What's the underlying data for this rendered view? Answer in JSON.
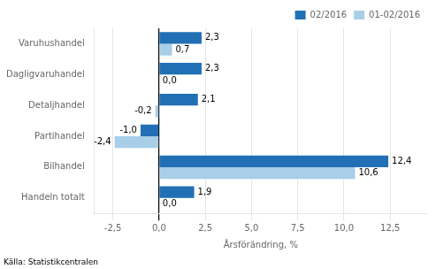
{
  "chart_data": {
    "type": "bar",
    "orientation": "horizontal",
    "categories": [
      "Varuhushandel",
      "Dagligvaruhandel",
      "Detaljhandel",
      "Partihandel",
      "Bilhandel",
      "Handeln totalt"
    ],
    "series": [
      {
        "name": "02/2016",
        "color": "#2170B5",
        "values": [
          2.3,
          2.3,
          2.1,
          -1.0,
          12.4,
          1.9
        ],
        "value_labels": [
          "2,3",
          "2,3",
          "2,1",
          "-1,0",
          "12,4",
          "1,9"
        ]
      },
      {
        "name": "01-02/2016",
        "color": "#A8CEE8",
        "values": [
          0.7,
          0.0,
          -0.2,
          -2.4,
          10.6,
          0.0
        ],
        "value_labels": [
          "0,7",
          "0,0",
          "-0,2",
          "-2,4",
          "10,6",
          "0,0"
        ]
      }
    ],
    "xlabel": "Årsförändring, %",
    "xlim": [
      -3.5,
      14.5
    ],
    "xticks": [
      {
        "value": -2.5,
        "label": "-2,5"
      },
      {
        "value": 0.0,
        "label": "0,0"
      },
      {
        "value": 2.5,
        "label": "2,5"
      },
      {
        "value": 5.0,
        "label": "5,0"
      },
      {
        "value": 7.5,
        "label": "7,5"
      },
      {
        "value": 10.0,
        "label": "10,0"
      },
      {
        "value": 12.5,
        "label": "12,5"
      }
    ],
    "grid": "x",
    "legend": "upper right",
    "data_labels": true,
    "annotations": [
      "Källa: Statistikcentralen"
    ]
  }
}
